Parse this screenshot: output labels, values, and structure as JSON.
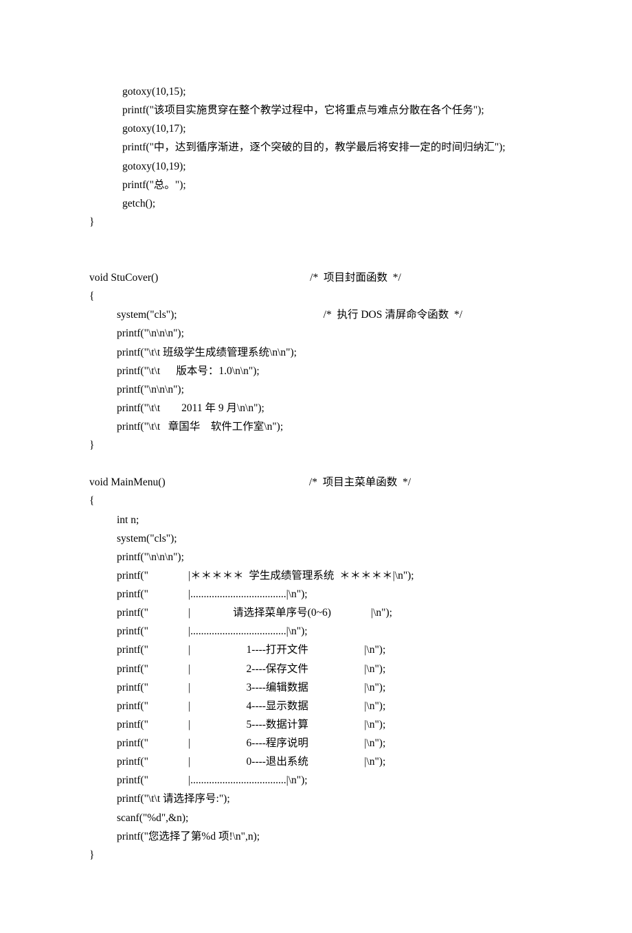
{
  "lines": {
    "l1": "gotoxy(10,15);",
    "l2": "printf(\"该项目实施贯穿在整个教学过程中，它将重点与难点分散在各个任务\");",
    "l3": "gotoxy(10,17);",
    "l4": "printf(\"中，达到循序渐进，逐个突破的目的，教学最后将安排一定的时间归纳汇\");",
    "l5": "gotoxy(10,19);",
    "l6": "printf(\"总。\");",
    "l7": "getch();",
    "l8": "}",
    "l9": "void StuCover()                                                         /*  项目封面函数  */",
    "l10": "{",
    "l11": "system(\"cls\");                                                       /*  执行 DOS 清屏命令函数  */",
    "l12": "printf(\"\\n\\n\\n\");",
    "l13": "printf(\"\\t\\t 班级学生成绩管理系统\\n\\n\");",
    "l14": "printf(\"\\t\\t      版本号：1.0\\n\\n\");",
    "l15": "printf(\"\\n\\n\\n\");",
    "l16": "printf(\"\\t\\t        2011 年 9 月\\n\\n\");",
    "l17": "printf(\"\\t\\t   章国华    软件工作室\\n\");",
    "l18": "}",
    "l19": "void MainMenu()                                                      /*  项目主菜单函数  */",
    "l20": "{",
    "l21": "int n;",
    "l22": "system(\"cls\");",
    "l23": "printf(\"\\n\\n\\n\");",
    "l24": "printf(\"               |＊＊＊＊＊  学生成绩管理系统  ＊＊＊＊＊|\\n\");",
    "l25": "printf(\"               |....................................|\\n\");",
    "l26": "printf(\"               |                请选择菜单序号(0~6)               |\\n\");",
    "l27": "printf(\"               |....................................|\\n\");",
    "l28": "printf(\"               |                     1----打开文件                     |\\n\");",
    "l29": "printf(\"               |                     2----保存文件                     |\\n\");",
    "l30": "printf(\"               |                     3----编辑数据                     |\\n\");",
    "l31": "printf(\"               |                     4----显示数据                     |\\n\");",
    "l32": "printf(\"               |                     5----数据计算                     |\\n\");",
    "l33": "printf(\"               |                     6----程序说明                     |\\n\");",
    "l34": "printf(\"               |                     0----退出系统                     |\\n\");",
    "l35": "printf(\"               |....................................|\\n\");",
    "l36": "printf(\"\\t\\t 请选择序号:\");",
    "l37": "scanf(\"%d\",&n);",
    "l38": "printf(\"您选择了第%d 项!\\n\",n);",
    "l39": "}"
  }
}
